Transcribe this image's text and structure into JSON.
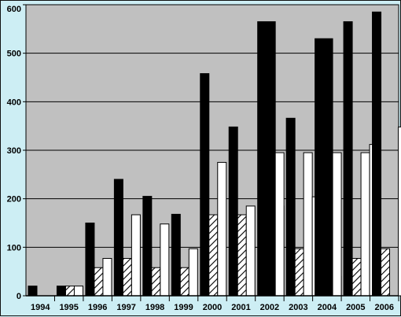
{
  "chart_data": {
    "type": "bar",
    "categories": [
      "1994",
      "1995",
      "1996",
      "1997",
      "1998",
      "1999",
      "2000",
      "2001",
      "2002",
      "2003",
      "2004",
      "2005",
      "2006"
    ],
    "series": [
      {
        "fill": "black",
        "values": [
          20,
          20,
          150,
          240,
          205,
          168,
          458,
          348,
          565,
          366,
          530,
          565,
          585
        ]
      },
      {
        "fill": "hatched",
        "values": [
          0,
          20,
          58,
          77,
          58,
          58,
          167,
          167,
          185,
          97,
          40,
          77,
          97
        ]
      },
      {
        "fill": "white",
        "values": [
          0,
          20,
          77,
          167,
          148,
          97,
          275,
          185,
          0,
          295,
          0,
          295,
          0
        ]
      },
      {
        "fill": "white",
        "values": [
          0,
          0,
          0,
          0,
          0,
          0,
          0,
          0,
          295,
          204,
          295,
          312,
          348
        ]
      }
    ],
    "wide_black_categories": [
      "2002",
      "2004"
    ],
    "ylim": [
      0,
      600
    ],
    "yticks": [
      0,
      100,
      200,
      300,
      400,
      500,
      600
    ],
    "grid": true,
    "plot_background": "#c0c0c0",
    "page_background": "#cdeef4",
    "legend": "none"
  }
}
